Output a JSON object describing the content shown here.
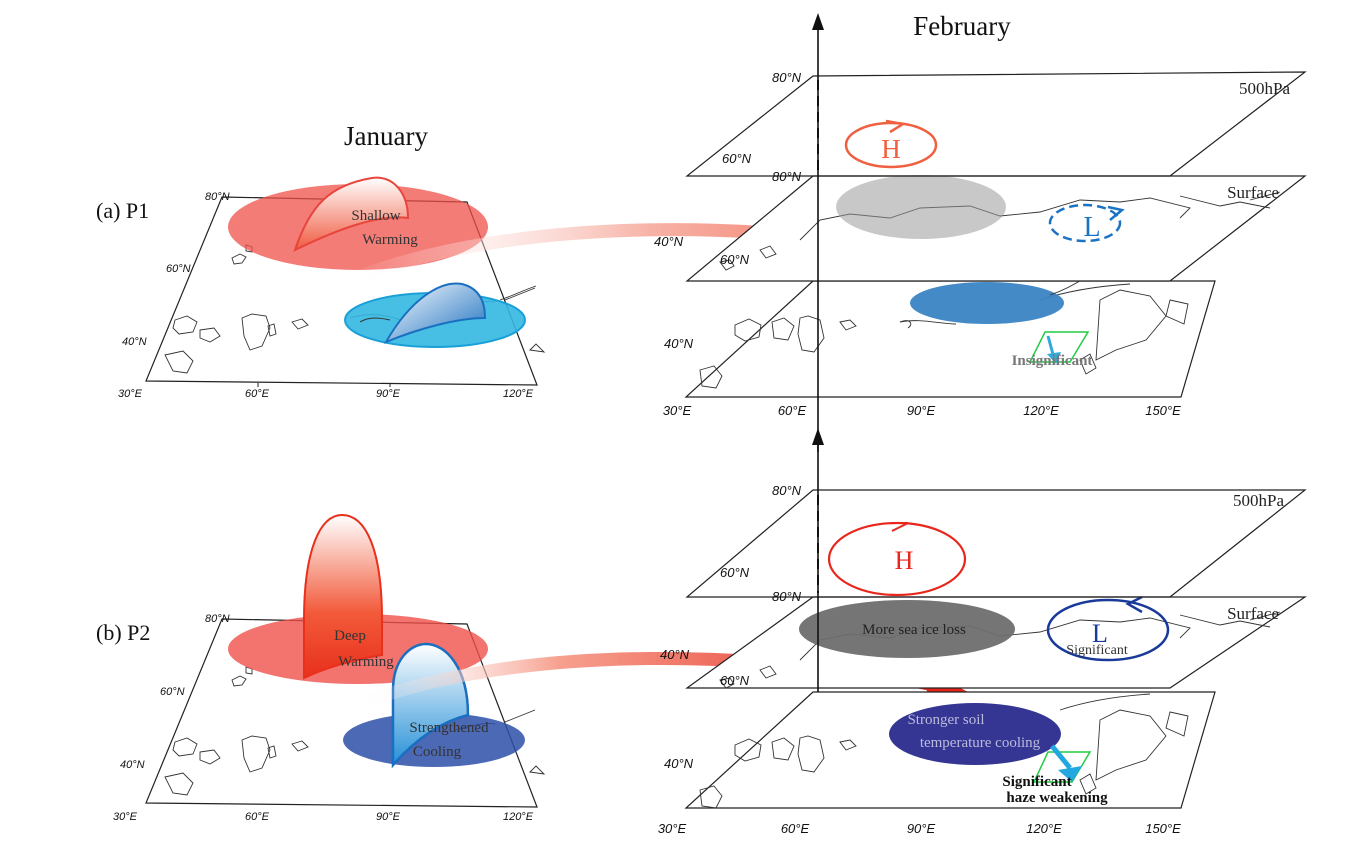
{
  "headers": {
    "january": "January",
    "february": "February"
  },
  "panels": {
    "p1": {
      "label": "(a) P1",
      "january": {
        "lat_ticks": [
          "80°N",
          "60°N",
          "40°N"
        ],
        "lon_ticks": [
          "30°E",
          "60°E",
          "90°E",
          "120°E"
        ],
        "warm_label_1": "Shallow",
        "warm_label_2": "Warming"
      },
      "february": {
        "level_upper": "500hPa",
        "level_lower": "Surface",
        "upper_lat_ticks": [
          "80°N",
          "60°N",
          "40°N"
        ],
        "surface_lat_ticks": [
          "80°N",
          "60°N",
          "40°N"
        ],
        "lon_ticks": [
          "30°E",
          "60°E",
          "90°E",
          "120°E",
          "150°E"
        ],
        "high": "H",
        "low": "L",
        "haze_text": "Insignificant"
      }
    },
    "p2": {
      "label": "(b) P2",
      "january": {
        "lat_ticks": [
          "80°N",
          "60°N",
          "40°N"
        ],
        "lon_ticks": [
          "30°E",
          "60°E",
          "90°E",
          "120°E"
        ],
        "warm_label_1": "Deep",
        "warm_label_2": "Warming",
        "cool_label_1": "Strengthened",
        "cool_label_2": "Cooling"
      },
      "february": {
        "level_upper": "500hPa",
        "level_lower": "Surface",
        "upper_lat_ticks": [
          "80°N",
          "60°N",
          "40°N"
        ],
        "surface_lat_ticks": [
          "80°N",
          "60°N",
          "40°N"
        ],
        "lon_ticks": [
          "30°E",
          "60°E",
          "90°E",
          "120°E",
          "150°E"
        ],
        "high": "H",
        "low": "L",
        "low_text": "Significant",
        "sea_ice_text": "More sea ice loss",
        "soil_text_1": "Stronger soil",
        "soil_text_2": "temperature cooling",
        "haze_text_1": "Significant",
        "haze_text_2": "haze weakening"
      }
    }
  },
  "colors": {
    "warm": "#f0504a",
    "cool": "#33b7e0",
    "cool_dark": "#2d4fa8",
    "high": "#e8453c",
    "low": "#1a3a9a",
    "sea_ice": "#6e6e6e",
    "haze_box": "#22cc44"
  }
}
